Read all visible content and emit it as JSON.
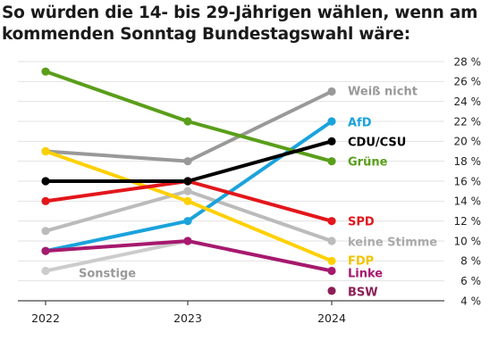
{
  "chart_data": {
    "type": "line",
    "title_lines": [
      "So würden die 14- bis 29-Jährigen wählen, wenn am",
      "kommenden Sonntag Bundestagswahl wäre:"
    ],
    "x": [
      "2022",
      "2023",
      "2024"
    ],
    "ylim": [
      4,
      28
    ],
    "y_ticks": [
      4,
      6,
      8,
      10,
      12,
      14,
      16,
      18,
      20,
      22,
      24,
      26,
      28
    ],
    "y_unit": "%",
    "y_tick_labels": [
      "4 %",
      "6 %",
      "8 %",
      "10 %",
      "12 %",
      "14 %",
      "16 %",
      "18 %",
      "20 %",
      "22 %",
      "24 %",
      "26 %",
      "28 %"
    ],
    "grid": true,
    "y_axis_position": "right",
    "series": [
      {
        "name": "Weiß nicht",
        "color": "#999999",
        "values": [
          19,
          18,
          25
        ]
      },
      {
        "name": "AfD",
        "color": "#1aa3dc",
        "values": [
          9,
          12,
          22
        ]
      },
      {
        "name": "CDU/CSU",
        "color": "#000000",
        "values": [
          16,
          16,
          20
        ]
      },
      {
        "name": "Grüne",
        "color": "#5a9e1a",
        "values": [
          27,
          22,
          18
        ]
      },
      {
        "name": "SPD",
        "color": "#e3161b",
        "values": [
          14,
          16,
          12
        ]
      },
      {
        "name": "keine Stimme",
        "color": "#bbbbbb",
        "values": [
          11,
          15,
          10
        ]
      },
      {
        "name": "FDP",
        "color": "#ffd000",
        "values": [
          19,
          14,
          8
        ]
      },
      {
        "name": "Linke",
        "color": "#a6196e",
        "values": [
          9,
          10,
          7
        ]
      },
      {
        "name": "Sonstige",
        "color": "#cccccc",
        "values": [
          7,
          10,
          null
        ]
      },
      {
        "name": "BSW",
        "color": "#8a1f55",
        "values": [
          null,
          null,
          5
        ]
      }
    ]
  }
}
